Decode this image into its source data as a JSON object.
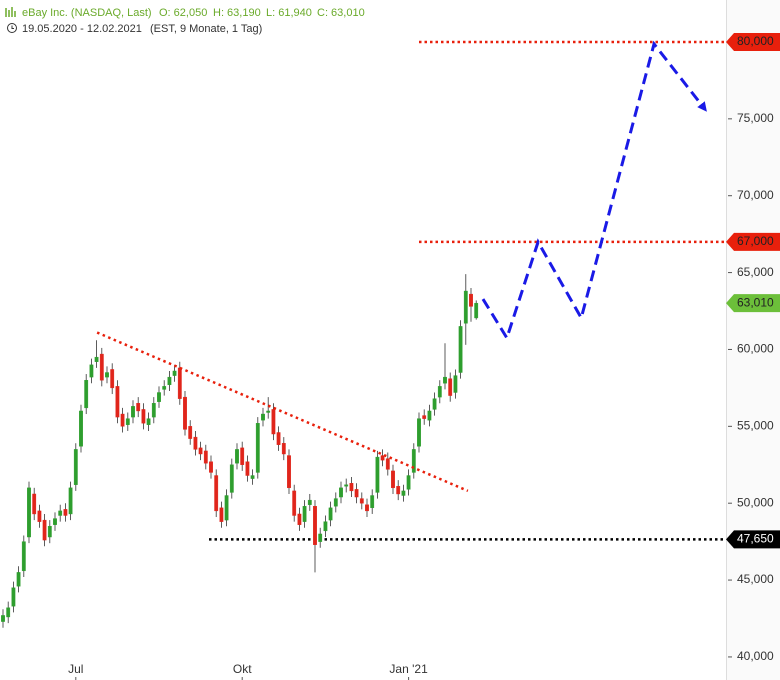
{
  "header": {
    "name": "eBay Inc. (NASDAQ, Last)",
    "open": "O: 62,050",
    "high": "H: 63,190",
    "low": "L: 61,940",
    "close": "C: 63,010",
    "range": "19.05.2020 - 12.02.2021",
    "info": "(EST, 9 Monate, 1 Tag)"
  },
  "chart_data": {
    "type": "candlestick",
    "categories": [
      null,
      null,
      null,
      null,
      null,
      null,
      null,
      null,
      null,
      null,
      null,
      null,
      null,
      null,
      "Jul",
      null,
      null,
      null,
      null,
      null,
      null,
      null,
      null,
      null,
      null,
      null,
      null,
      null,
      null,
      null,
      null,
      null,
      null,
      null,
      null,
      null,
      null,
      null,
      null,
      null,
      null,
      null,
      null,
      null,
      null,
      null,
      "Okt",
      null,
      null,
      null,
      null,
      null,
      null,
      null,
      null,
      null,
      null,
      null,
      null,
      null,
      null,
      null,
      null,
      null,
      null,
      null,
      null,
      null,
      null,
      null,
      null,
      null,
      null,
      null,
      null,
      null,
      null,
      null,
      "Jan '21",
      null,
      null,
      null,
      null,
      null,
      null,
      null,
      null,
      null,
      null,
      null,
      null,
      null,
      null
    ],
    "opens": [
      42.3,
      42.6,
      43.3,
      44.6,
      45.6,
      47.8,
      50.6,
      49.5,
      48.9,
      47.8,
      48.6,
      49.2,
      49.6,
      49.3,
      51.2,
      53.7,
      56.2,
      58.2,
      59.2,
      59.7,
      58.2,
      58.7,
      57.6,
      55.8,
      55.1,
      55.6,
      56.5,
      56.1,
      55.1,
      55.6,
      56.6,
      57.4,
      57.7,
      58.3,
      58.8,
      56.9,
      55.0,
      54.3,
      53.6,
      53.4,
      52.7,
      51.8,
      49.7,
      48.9,
      50.7,
      52.6,
      53.6,
      52.7,
      51.6,
      52.0,
      55.4,
      55.9,
      56.1,
      54.6,
      53.9,
      53.1,
      50.8,
      49.3,
      48.8,
      49.9,
      49.8,
      47.5,
      48.2,
      48.9,
      49.8,
      50.4,
      51.1,
      51.3,
      50.9,
      50.3,
      49.9,
      49.7,
      50.7,
      53.1,
      52.9,
      52.1,
      51.1,
      50.5,
      50.9,
      52.0,
      53.7,
      55.7,
      55.4,
      56.1,
      56.9,
      57.8,
      58.1,
      57.2,
      58.5,
      61.7,
      63.6,
      62.05
    ],
    "highs": [
      43.1,
      43.6,
      44.9,
      45.9,
      47.9,
      51.4,
      51.0,
      49.9,
      49.3,
      48.9,
      49.4,
      49.9,
      50.0,
      51.4,
      53.9,
      56.4,
      58.4,
      59.4,
      60.6,
      60.1,
      58.9,
      59.1,
      58.0,
      56.2,
      55.9,
      56.7,
      56.9,
      56.5,
      55.9,
      56.9,
      57.6,
      58.0,
      58.6,
      59.0,
      59.2,
      57.3,
      55.4,
      54.7,
      54.0,
      53.8,
      53.1,
      52.2,
      50.1,
      50.9,
      52.9,
      53.9,
      54.0,
      53.1,
      52.2,
      55.6,
      56.2,
      56.9,
      56.5,
      55.0,
      54.3,
      53.5,
      51.2,
      49.7,
      50.2,
      50.6,
      50.2,
      48.4,
      49.2,
      50.1,
      50.7,
      51.4,
      51.6,
      51.7,
      51.3,
      50.7,
      50.3,
      50.9,
      53.4,
      53.5,
      53.3,
      52.5,
      51.5,
      51.2,
      52.2,
      53.9,
      55.9,
      56.1,
      56.4,
      57.2,
      58.0,
      60.4,
      58.5,
      58.7,
      61.9,
      64.9,
      64.0,
      63.19
    ],
    "lows": [
      41.9,
      42.2,
      42.9,
      44.2,
      45.2,
      47.4,
      48.9,
      48.4,
      47.2,
      47.4,
      48.2,
      48.8,
      48.8,
      48.9,
      50.8,
      53.3,
      55.8,
      57.8,
      58.8,
      57.6,
      57.8,
      57.1,
      55.2,
      54.6,
      54.7,
      55.2,
      55.6,
      54.8,
      54.7,
      55.2,
      56.2,
      57.0,
      57.3,
      57.9,
      56.4,
      54.4,
      53.8,
      53.1,
      52.8,
      52.2,
      51.6,
      49.1,
      48.4,
      48.5,
      50.3,
      52.2,
      52.1,
      51.4,
      51.2,
      51.6,
      55.0,
      55.5,
      54.1,
      53.4,
      52.8,
      50.6,
      48.8,
      48.2,
      48.4,
      49.5,
      45.5,
      47.1,
      47.8,
      48.5,
      49.4,
      50.0,
      50.7,
      50.4,
      50.0,
      49.6,
      49.1,
      49.3,
      50.3,
      52.4,
      51.8,
      50.6,
      50.2,
      50.1,
      50.5,
      51.6,
      53.3,
      55.1,
      55.0,
      55.7,
      56.5,
      57.4,
      56.6,
      56.8,
      58.1,
      60.3,
      61.8,
      61.94
    ],
    "closes": [
      42.7,
      43.2,
      44.5,
      45.5,
      47.5,
      51,
      49.3,
      48.8,
      47.6,
      48.5,
      49,
      49.5,
      49.2,
      51,
      53.5,
      56,
      58,
      59,
      59.5,
      58,
      58.5,
      57.5,
      55.6,
      55,
      55.5,
      56.3,
      56,
      55.2,
      55.5,
      56.5,
      57.2,
      57.6,
      58.2,
      58.6,
      56.8,
      54.8,
      54.2,
      53.5,
      53.2,
      52.6,
      52,
      49.5,
      48.8,
      50.5,
      52.5,
      53.5,
      52.5,
      51.8,
      51.8,
      55.2,
      55.8,
      56,
      54.5,
      53.8,
      53.2,
      51,
      49.2,
      48.6,
      49.8,
      50.2,
      47.3,
      48,
      48.8,
      49.7,
      50.3,
      51,
      51.2,
      50.8,
      50.4,
      50,
      49.5,
      50.5,
      53,
      52.8,
      52.2,
      51,
      50.6,
      50.8,
      51.8,
      53.5,
      55.5,
      55.5,
      56,
      56.8,
      57.6,
      58.2,
      57,
      58.3,
      61.5,
      63.8,
      62.8,
      63.01
    ],
    "up_color": "#2e9e2e",
    "down_color": "#e0251b",
    "ylim": [
      38.5,
      82.73
    ],
    "yticks": [
      {
        "value": 40,
        "label": "40,000"
      },
      {
        "value": 45,
        "label": "45,000"
      },
      {
        "value": 50,
        "label": "50,000"
      },
      {
        "value": 55,
        "label": "55,000"
      },
      {
        "value": 60,
        "label": "60,000"
      },
      {
        "value": 65,
        "label": "65,000"
      },
      {
        "value": 70,
        "label": "70,000"
      },
      {
        "value": 75,
        "label": "75,000"
      }
    ],
    "levels": [
      {
        "value": 80,
        "label": "80,000",
        "color": "#e8200c",
        "text_color": "#222"
      },
      {
        "value": 67,
        "label": "67,000",
        "color": "#e8200c",
        "text_color": "#222"
      },
      {
        "value": 63.01,
        "label": "63,010",
        "color": "#6cbf3a",
        "text_color": "#222"
      },
      {
        "value": 47.65,
        "label": "47,650",
        "color": "#000000",
        "text_color": "#ffffff"
      }
    ],
    "annotations": [
      {
        "x": [
          18.1,
          89.4
        ],
        "y": [
          61.1,
          50.8
        ],
        "color": "#e8200c"
      },
      {
        "x": [
          92.3,
          96.9,
          102.9,
          111.2,
          125.2,
          134.8
        ],
        "y": [
          63.28,
          60.75,
          66.99,
          62.05,
          79.87,
          75.71
        ],
        "color": "#1a1ae6"
      }
    ]
  }
}
